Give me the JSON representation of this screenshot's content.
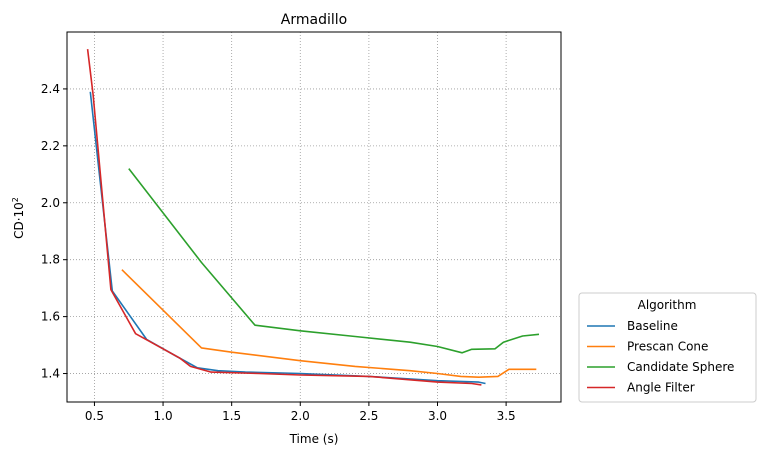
{
  "chart_data": {
    "type": "line",
    "title": "Armadillo",
    "xlabel": "Time (s)",
    "ylabel_base": "CD·10",
    "ylabel_exp": "2",
    "xlim": [
      0.3,
      3.9
    ],
    "ylim": [
      1.3,
      2.6
    ],
    "x_ticks": [
      0.5,
      1.0,
      1.5,
      2.0,
      2.5,
      3.0,
      3.5
    ],
    "x_tick_labels": [
      "0.5",
      "1.0",
      "1.5",
      "2.0",
      "2.5",
      "3.0",
      "3.5"
    ],
    "y_ticks": [
      1.4,
      1.6,
      1.8,
      2.0,
      2.2,
      2.4
    ],
    "y_tick_labels": [
      "1.4",
      "1.6",
      "1.8",
      "2.0",
      "2.2",
      "2.4"
    ],
    "grid": true,
    "legend": {
      "title": "Algorithm",
      "placement": "outside-lower-right"
    },
    "series": [
      {
        "name": "Baseline",
        "color": "#1f77b4",
        "x": [
          0.47,
          0.63,
          0.88,
          1.1,
          1.25,
          1.4,
          1.6,
          2.0,
          2.5,
          3.0,
          3.3,
          3.35
        ],
        "y": [
          2.39,
          1.69,
          1.52,
          1.46,
          1.42,
          1.41,
          1.405,
          1.4,
          1.39,
          1.375,
          1.37,
          1.365
        ]
      },
      {
        "name": "Prescan Cone",
        "color": "#ff7f0e",
        "x": [
          0.7,
          1.28,
          1.5,
          2.0,
          2.4,
          2.8,
          3.0,
          3.17,
          3.3,
          3.44,
          3.52,
          3.72
        ],
        "y": [
          1.765,
          1.49,
          1.475,
          1.445,
          1.425,
          1.41,
          1.4,
          1.39,
          1.387,
          1.39,
          1.415,
          1.415
        ]
      },
      {
        "name": "Candidate Sphere",
        "color": "#2ca02c",
        "x": [
          0.75,
          1.28,
          1.67,
          2.0,
          2.4,
          2.8,
          3.0,
          3.18,
          3.25,
          3.42,
          3.48,
          3.62,
          3.74
        ],
        "y": [
          2.12,
          1.79,
          1.57,
          1.55,
          1.53,
          1.51,
          1.495,
          1.473,
          1.485,
          1.487,
          1.51,
          1.532,
          1.538
        ]
      },
      {
        "name": "Angle Filter",
        "color": "#d62728",
        "x": [
          0.45,
          0.49,
          0.62,
          0.8,
          1.12,
          1.2,
          1.35,
          1.7,
          2.0,
          2.5,
          3.0,
          3.25,
          3.32
        ],
        "y": [
          2.54,
          2.38,
          1.695,
          1.54,
          1.455,
          1.425,
          1.405,
          1.4,
          1.395,
          1.39,
          1.37,
          1.365,
          1.36
        ]
      }
    ]
  }
}
